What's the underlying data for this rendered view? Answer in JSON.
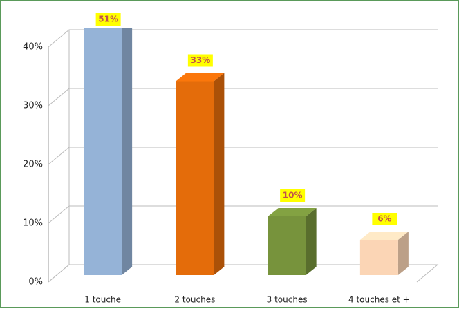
{
  "chart_data": {
    "type": "bar",
    "categories": [
      "1 touche",
      "2 touches",
      "3 touches",
      "4 touches et +"
    ],
    "values": [
      51,
      33,
      10,
      6
    ],
    "value_labels": [
      "51%",
      "33%",
      "10%",
      "6%"
    ],
    "colors": [
      "#95b3d7",
      "#e46c0a",
      "#77933c",
      "#fbd5b5"
    ],
    "ylim": [
      0,
      40
    ],
    "yticks": [
      {
        "value": 0,
        "label": "0%"
      },
      {
        "value": 10,
        "label": "10%"
      },
      {
        "value": 20,
        "label": "20%"
      },
      {
        "value": 30,
        "label": "30%"
      },
      {
        "value": 40,
        "label": "40%"
      }
    ],
    "grid": true
  }
}
